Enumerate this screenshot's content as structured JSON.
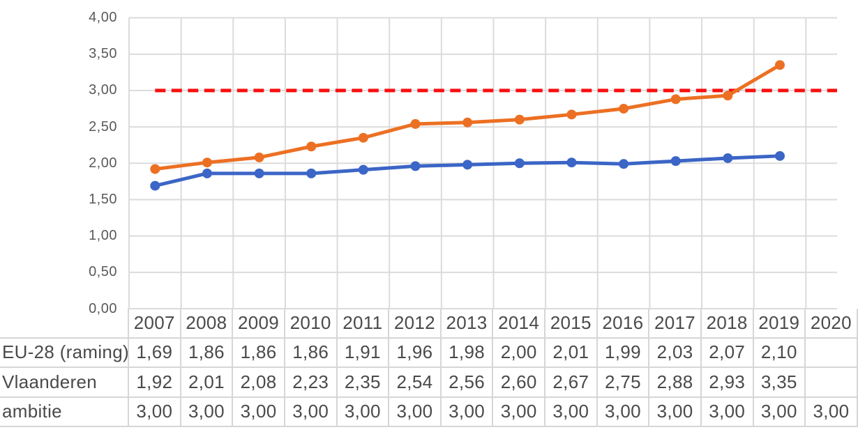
{
  "chart_data": {
    "type": "line",
    "title": "",
    "xlabel": "",
    "ylabel": "",
    "ylim": [
      0,
      4
    ],
    "ytick_step": 0.5,
    "y_tick_labels": [
      "4,00",
      "3,50",
      "3,00",
      "2,50",
      "2,00",
      "1,50",
      "1,00",
      "0,50",
      "0,00"
    ],
    "grid": true,
    "number_format": "comma-decimal",
    "categories": [
      "2007",
      "2008",
      "2009",
      "2010",
      "2011",
      "2012",
      "2013",
      "2014",
      "2015",
      "2016",
      "2017",
      "2018",
      "2019",
      "2020"
    ],
    "series": [
      {
        "key": "eu-28-raming",
        "name": "EU-28 (raming)",
        "color": "#3b65c6",
        "style": "solid-markers",
        "values": [
          1.69,
          1.86,
          1.86,
          1.86,
          1.91,
          1.96,
          1.98,
          2.0,
          2.01,
          1.99,
          2.03,
          2.07,
          2.1
        ]
      },
      {
        "key": "vlaanderen",
        "name": "Vlaanderen",
        "color": "#ec7023",
        "style": "solid-markers",
        "values": [
          1.92,
          2.01,
          2.08,
          2.23,
          2.35,
          2.54,
          2.56,
          2.6,
          2.67,
          2.75,
          2.88,
          2.93,
          3.35
        ]
      },
      {
        "key": "ambitie",
        "name": "ambitie",
        "color": "#fa0f0f",
        "style": "dashed",
        "values": [
          3.0,
          3.0,
          3.0,
          3.0,
          3.0,
          3.0,
          3.0,
          3.0,
          3.0,
          3.0,
          3.0,
          3.0,
          3.0,
          3.0
        ]
      }
    ],
    "table": {
      "year_headers": [
        "2007",
        "2008",
        "2009",
        "2010",
        "2011",
        "2012",
        "2013",
        "2014",
        "2015",
        "2016",
        "2017",
        "2018",
        "2019",
        "2020"
      ],
      "rows": [
        {
          "label": "EU-28 (raming)",
          "cells": [
            "1,69",
            "1,86",
            "1,86",
            "1,86",
            "1,91",
            "1,96",
            "1,98",
            "2,00",
            "2,01",
            "1,99",
            "2,03",
            "2,07",
            "2,10",
            ""
          ]
        },
        {
          "label": "Vlaanderen",
          "cells": [
            "1,92",
            "2,01",
            "2,08",
            "2,23",
            "2,35",
            "2,54",
            "2,56",
            "2,60",
            "2,67",
            "2,75",
            "2,88",
            "2,93",
            "3,35",
            ""
          ]
        },
        {
          "label": "ambitie",
          "cells": [
            "3,00",
            "3,00",
            "3,00",
            "3,00",
            "3,00",
            "3,00",
            "3,00",
            "3,00",
            "3,00",
            "3,00",
            "3,00",
            "3,00",
            "3,00",
            "3,00"
          ]
        }
      ]
    },
    "colors": {
      "gridline": "#dbdbdb",
      "table_border": "#d6d6d6",
      "axis_text": "#595959",
      "table_text": "#4a4a4a",
      "background": "#ffffff"
    }
  }
}
